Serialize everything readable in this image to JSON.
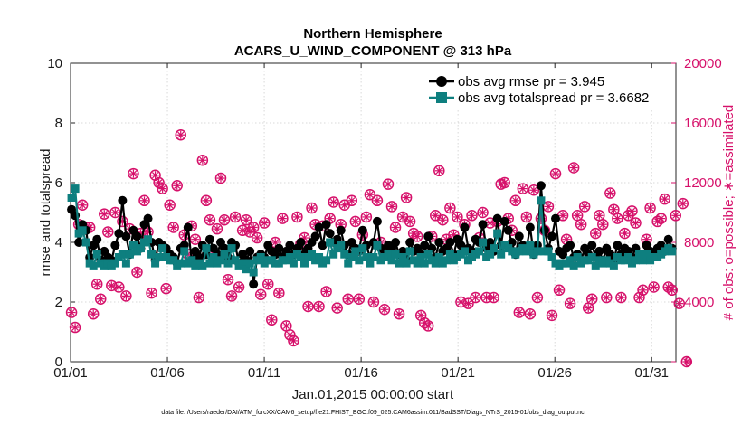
{
  "chart_data": {
    "type": "line",
    "title": "Northern Hemisphere",
    "subtitle": "ACARS_U_WIND_COMPONENT @ 313 hPa",
    "xlabel": "Jan.01,2015 00:00:00 start",
    "ylabel": "rmse and totalspread",
    "y2label": "# of obs: o=possible; ∗=assimilated",
    "x_ticks": [
      "01/01",
      "01/06",
      "01/11",
      "01/16",
      "01/21",
      "01/26",
      "01/31"
    ],
    "x_tick_days": [
      0,
      5,
      10,
      15,
      20,
      25,
      30
    ],
    "xlim_days": [
      0,
      31.25
    ],
    "ylim": [
      0,
      10
    ],
    "y_ticks": [
      "0",
      "2",
      "4",
      "6",
      "8",
      "10"
    ],
    "y2lim": [
      0,
      20000
    ],
    "y2_ticks": [
      "0",
      "4000",
      "8000",
      "12000",
      "16000",
      "20000"
    ],
    "grid": true,
    "legend_position": "top-right",
    "footnote": "data file: /Users/raeder/DAI/ATM_forcXX/CAM6_setup/f.e21.FHIST_BGC.f09_025.CAM6assim.011/BadSST/Diags_NTrS_2015-01/obs_diag_output.nc",
    "colors": {
      "rmse": "#000000",
      "spread": "#0e7f7f",
      "obs": "#d6106a"
    },
    "series": [
      {
        "name": "obs avg rmse pr = 3.945",
        "axis": "left",
        "marker": "circle",
        "values": [
          5.1,
          4.9,
          4.0,
          4.6,
          4.4,
          3.5,
          3.9,
          4.1,
          3.4,
          3.7,
          3.5,
          3.4,
          3.9,
          4.3,
          5.4,
          4.2,
          3.6,
          4.4,
          4.2,
          3.8,
          4.6,
          4.8,
          4.0,
          3.4,
          4.0,
          3.9,
          3.8,
          3.6,
          3.5,
          3.3,
          3.8,
          3.9,
          4.5,
          3.4,
          3.7,
          3.5,
          3.9,
          3.6,
          4.1,
          3.8,
          3.6,
          4.0,
          3.8,
          3.5,
          4.0,
          3.9,
          3.3,
          3.6,
          3.4,
          3.7,
          2.6,
          3.5,
          3.6,
          3.5,
          3.9,
          3.7,
          3.6,
          3.8,
          3.5,
          3.7,
          3.9,
          3.6,
          3.8,
          4.0,
          3.6,
          3.8,
          4.0,
          4.2,
          4.5,
          3.9,
          4.6,
          4.3,
          4.0,
          4.1,
          4.4,
          3.9,
          3.6,
          4.0,
          3.8,
          3.7,
          4.4,
          3.9,
          3.5,
          4.0,
          4.7,
          3.8,
          3.6,
          3.9,
          3.8,
          4.0,
          3.6,
          3.7,
          3.4,
          4.0,
          3.7,
          3.8,
          3.6,
          3.9,
          4.2,
          3.8,
          3.5,
          4.0,
          3.7,
          3.8,
          4.0,
          3.6,
          4.1,
          3.9,
          4.5,
          3.8,
          3.7,
          4.1,
          4.0,
          4.6,
          3.8,
          4.0,
          3.7,
          4.8,
          3.9,
          4.7,
          4.4,
          4.0,
          3.6,
          4.2,
          3.9,
          3.8,
          4.5,
          3.6,
          3.9,
          5.9,
          4.4,
          3.8,
          4.2,
          4.8,
          3.7,
          3.6,
          3.8,
          3.9,
          3.5,
          3.6,
          3.4,
          3.8,
          3.6,
          3.9,
          3.5,
          3.7,
          3.4,
          3.8,
          3.6,
          3.4,
          3.9,
          3.6,
          3.8,
          3.7,
          3.5,
          3.8,
          3.6,
          3.5,
          3.9,
          3.7,
          3.6,
          3.8,
          3.9,
          3.7,
          4.1,
          3.8
        ]
      },
      {
        "name": "obs avg totalspread pr = 3.6682",
        "axis": "left",
        "marker": "square",
        "values": [
          5.5,
          5.8,
          4.3,
          4.4,
          4.0,
          3.3,
          3.2,
          3.6,
          3.3,
          3.2,
          3.3,
          3.2,
          3.3,
          3.5,
          3.6,
          3.3,
          3.6,
          3.9,
          3.7,
          3.8,
          4.0,
          4.1,
          3.6,
          3.3,
          3.5,
          3.8,
          3.5,
          3.4,
          3.4,
          3.2,
          3.3,
          3.7,
          3.3,
          3.4,
          3.2,
          3.3,
          3.2,
          3.8,
          3.3,
          3.5,
          3.3,
          3.4,
          3.6,
          3.3,
          3.8,
          3.4,
          3.2,
          3.3,
          3.1,
          3.3,
          3.0,
          3.4,
          3.5,
          3.3,
          3.4,
          3.4,
          3.3,
          3.3,
          3.4,
          3.4,
          3.5,
          3.3,
          3.6,
          3.5,
          3.3,
          3.5,
          3.6,
          3.4,
          3.5,
          3.3,
          3.4,
          4.0,
          3.6,
          3.8,
          3.9,
          3.6,
          3.3,
          3.5,
          3.7,
          3.4,
          3.8,
          3.5,
          3.3,
          3.5,
          3.9,
          3.4,
          3.5,
          3.6,
          3.4,
          3.6,
          3.3,
          3.5,
          3.3,
          3.7,
          3.4,
          3.3,
          3.5,
          3.3,
          3.6,
          3.4,
          3.3,
          3.5,
          3.3,
          3.4,
          3.6,
          3.4,
          3.5,
          3.6,
          3.7,
          3.4,
          3.5,
          3.6,
          3.7,
          4.0,
          3.5,
          3.6,
          3.8,
          4.3,
          3.6,
          3.9,
          3.8,
          3.7,
          3.6,
          3.7,
          3.8,
          3.7,
          3.9,
          3.6,
          3.7,
          5.4,
          3.7,
          3.7,
          3.5,
          3.3,
          3.2,
          3.3,
          3.3,
          3.4,
          3.2,
          3.5,
          3.3,
          3.4,
          3.4,
          3.5,
          3.2,
          3.4,
          3.3,
          3.4,
          3.3,
          3.2,
          3.5,
          3.4,
          3.4,
          3.5,
          3.3,
          3.4,
          3.6,
          3.4,
          3.6,
          3.4,
          3.5,
          3.5,
          3.6,
          3.7,
          3.8,
          3.7
        ]
      },
      {
        "name": "possible",
        "axis": "right",
        "marker": "circle-open",
        "values": [
          3300,
          2300,
          9200,
          10500,
          9000,
          9000,
          3200,
          5200,
          4200,
          9900,
          8700,
          5100,
          10000,
          5000,
          9400,
          4400,
          8900,
          12600,
          6000,
          8600,
          10800,
          8700,
          4600,
          12500,
          12000,
          11600,
          4900,
          10500,
          9000,
          11800,
          15200,
          8500,
          7200,
          9100,
          8200,
          4300,
          13500,
          10800,
          9500,
          7200,
          8900,
          12300,
          9500,
          5500,
          4400,
          9700,
          5000,
          8800,
          9500,
          8700,
          9000,
          8300,
          4500,
          9300,
          5200,
          2800,
          8000,
          4600,
          9600,
          2400,
          1800,
          1400,
          9700,
          7900,
          8300,
          3700,
          10300,
          9200,
          3700,
          9100,
          4700,
          9600,
          10700,
          3600,
          9200,
          10500,
          4200,
          10800,
          9400,
          4200,
          8500,
          9700,
          11200,
          4000,
          10800,
          8000,
          3500,
          11900,
          10400,
          9000,
          3200,
          9700,
          11000,
          9400,
          8600,
          8400,
          3100,
          2600,
          2400,
          8400,
          9800,
          12800,
          9500,
          8200,
          10300,
          8500,
          9700,
          4000,
          9200,
          3900,
          9800,
          4300,
          8300,
          10000,
          4300,
          9300,
          4300,
          9400,
          11900,
          12000,
          9600,
          8800,
          10800,
          3300,
          11600,
          9700,
          3200,
          11500,
          4300,
          9600,
          8800,
          10400,
          3100,
          12600,
          4800,
          9800,
          8200,
          3900,
          13000,
          9800,
          9200,
          10400,
          3600,
          4200,
          8600,
          9800,
          9200,
          4300,
          11300,
          10200,
          9600,
          4300,
          8600,
          9800,
          10100,
          9300,
          4300,
          4800,
          8200,
          10300,
          5000,
          9400,
          9600,
          10900,
          5000,
          4800,
          9800,
          3900,
          10600,
          0
        ]
      },
      {
        "name": "assimilated",
        "axis": "right",
        "marker": "asterisk",
        "values": [
          3300,
          2300,
          9200,
          10500,
          9000,
          9000,
          3200,
          5200,
          4200,
          9900,
          8700,
          5100,
          10000,
          5000,
          9400,
          4400,
          8900,
          12600,
          6000,
          8600,
          10800,
          8700,
          4600,
          12500,
          12000,
          11600,
          4900,
          10500,
          9000,
          11800,
          15200,
          8500,
          7200,
          9100,
          8200,
          4300,
          13500,
          10800,
          9500,
          7200,
          8900,
          12300,
          9500,
          5500,
          4400,
          9700,
          5000,
          8800,
          9500,
          8700,
          9000,
          8300,
          4500,
          9300,
          5200,
          2800,
          8000,
          4600,
          9600,
          2400,
          1800,
          1400,
          9700,
          7900,
          8300,
          3700,
          10300,
          9200,
          3700,
          9100,
          4700,
          9600,
          10700,
          3600,
          9200,
          10500,
          4200,
          10800,
          9400,
          4200,
          8500,
          9700,
          11200,
          4000,
          10800,
          8000,
          3500,
          11900,
          10400,
          9000,
          3200,
          9700,
          11000,
          9400,
          8600,
          8400,
          3100,
          2600,
          2400,
          8400,
          9800,
          12800,
          9500,
          8200,
          10300,
          8500,
          9700,
          4000,
          9200,
          3900,
          9800,
          4300,
          8300,
          10000,
          4300,
          9300,
          4300,
          9400,
          11900,
          12000,
          9600,
          8800,
          10800,
          3300,
          11600,
          9700,
          3200,
          11500,
          4300,
          9600,
          8800,
          10400,
          3100,
          12600,
          4800,
          9800,
          8200,
          3900,
          13000,
          9800,
          9200,
          10400,
          3600,
          4200,
          8600,
          9800,
          9200,
          4300,
          11300,
          10200,
          9600,
          4300,
          8600,
          9800,
          10100,
          9300,
          4300,
          4800,
          8200,
          10300,
          5000,
          9400,
          9600,
          10900,
          5000,
          4800,
          9800,
          3900,
          10600,
          0
        ]
      }
    ]
  }
}
